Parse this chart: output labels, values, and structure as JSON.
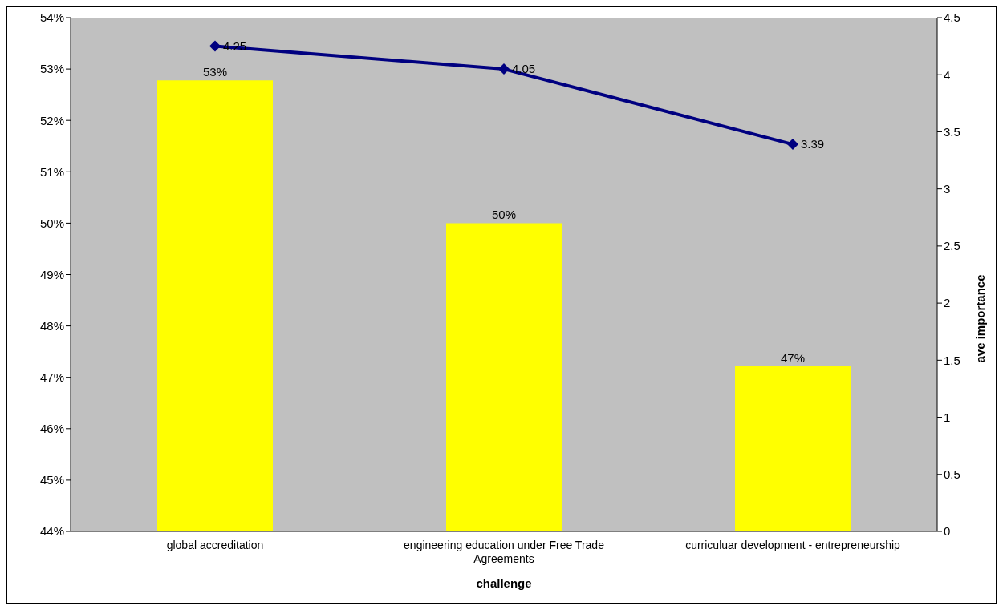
{
  "chart_data": {
    "type": "bar",
    "categories": [
      "global accreditation",
      "engineering education under Free Trade Agreements",
      "curriculuar development - entrepreneurship"
    ],
    "xlabel": "challenge",
    "y2label": "ave importance",
    "series": [
      {
        "color": "#ffff00",
        "values": [
          52.78,
          50.0,
          47.22
        ],
        "value_labels": [
          "53%",
          "50%",
          "47%"
        ]
      },
      {
        "type": "line",
        "axis": "y2",
        "color": "#000080",
        "values": [
          4.25,
          4.05,
          3.39
        ],
        "value_labels": [
          "4.25",
          "4.05",
          "3.39"
        ],
        "marker": "diamond"
      }
    ],
    "ylim": [
      44,
      54
    ],
    "yticks": [
      {
        "value": 44,
        "label": "44%"
      },
      {
        "value": 45,
        "label": "45%"
      },
      {
        "value": 46,
        "label": "46%"
      },
      {
        "value": 47,
        "label": "47%"
      },
      {
        "value": 48,
        "label": "48%"
      },
      {
        "value": 49,
        "label": "49%"
      },
      {
        "value": 50,
        "label": "50%"
      },
      {
        "value": 51,
        "label": "51%"
      },
      {
        "value": 52,
        "label": "52%"
      },
      {
        "value": 53,
        "label": "53%"
      },
      {
        "value": 54,
        "label": "54%"
      }
    ],
    "y2lim": [
      0,
      4.5
    ],
    "y2ticks": [
      0,
      0.5,
      1,
      1.5,
      2,
      2.5,
      3,
      3.5,
      4,
      4.5
    ],
    "grid": false,
    "legend": false
  }
}
